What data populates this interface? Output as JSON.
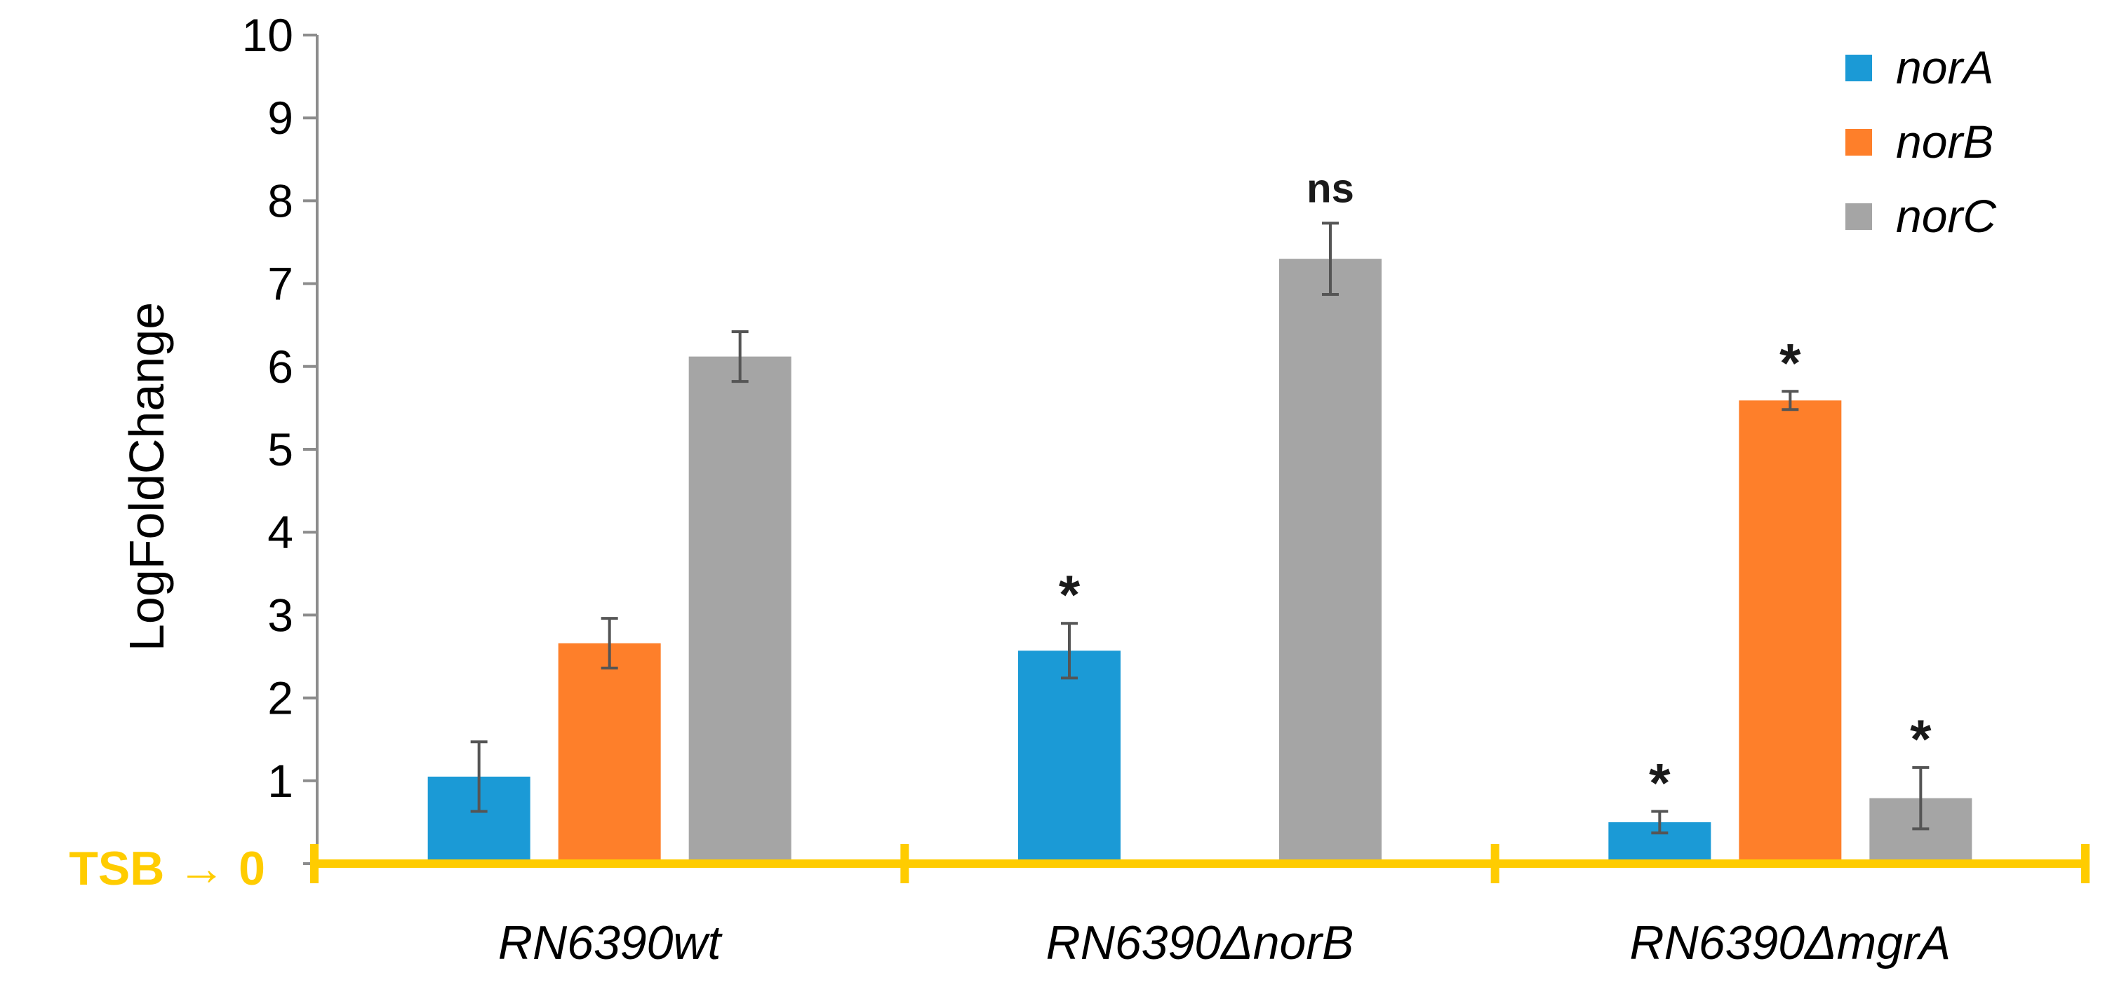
{
  "chart_data": {
    "type": "bar",
    "ylabel": "LogFoldChange",
    "ylim": [
      0,
      10
    ],
    "yticks": [
      "0",
      "1",
      "2",
      "3",
      "4",
      "5",
      "6",
      "7",
      "8",
      "9",
      "10"
    ],
    "categories": [
      "RN6390wt",
      "RN6390ΔnorB",
      "RN6390ΔmgrA"
    ],
    "series": [
      {
        "name": "norA",
        "color": "#1B9AD6",
        "values": [
          1.05,
          2.57,
          0.5
        ],
        "errors": [
          0.42,
          0.33,
          0.13
        ],
        "annotations": [
          "",
          "*",
          "*"
        ]
      },
      {
        "name": "norB",
        "color": "#FE7F2A",
        "values": [
          2.66,
          null,
          5.59
        ],
        "errors": [
          0.3,
          null,
          0.11
        ],
        "annotations": [
          "",
          "",
          "*"
        ]
      },
      {
        "name": "norC",
        "color": "#A5A5A5",
        "values": [
          6.12,
          7.3,
          0.79
        ],
        "errors": [
          0.3,
          0.43,
          0.37
        ],
        "annotations": [
          "",
          "ns",
          "*"
        ]
      }
    ],
    "baseline_label": "TSB → 0",
    "baseline_color": "#FFCC00",
    "legend_position": "top-right",
    "grid": false
  }
}
